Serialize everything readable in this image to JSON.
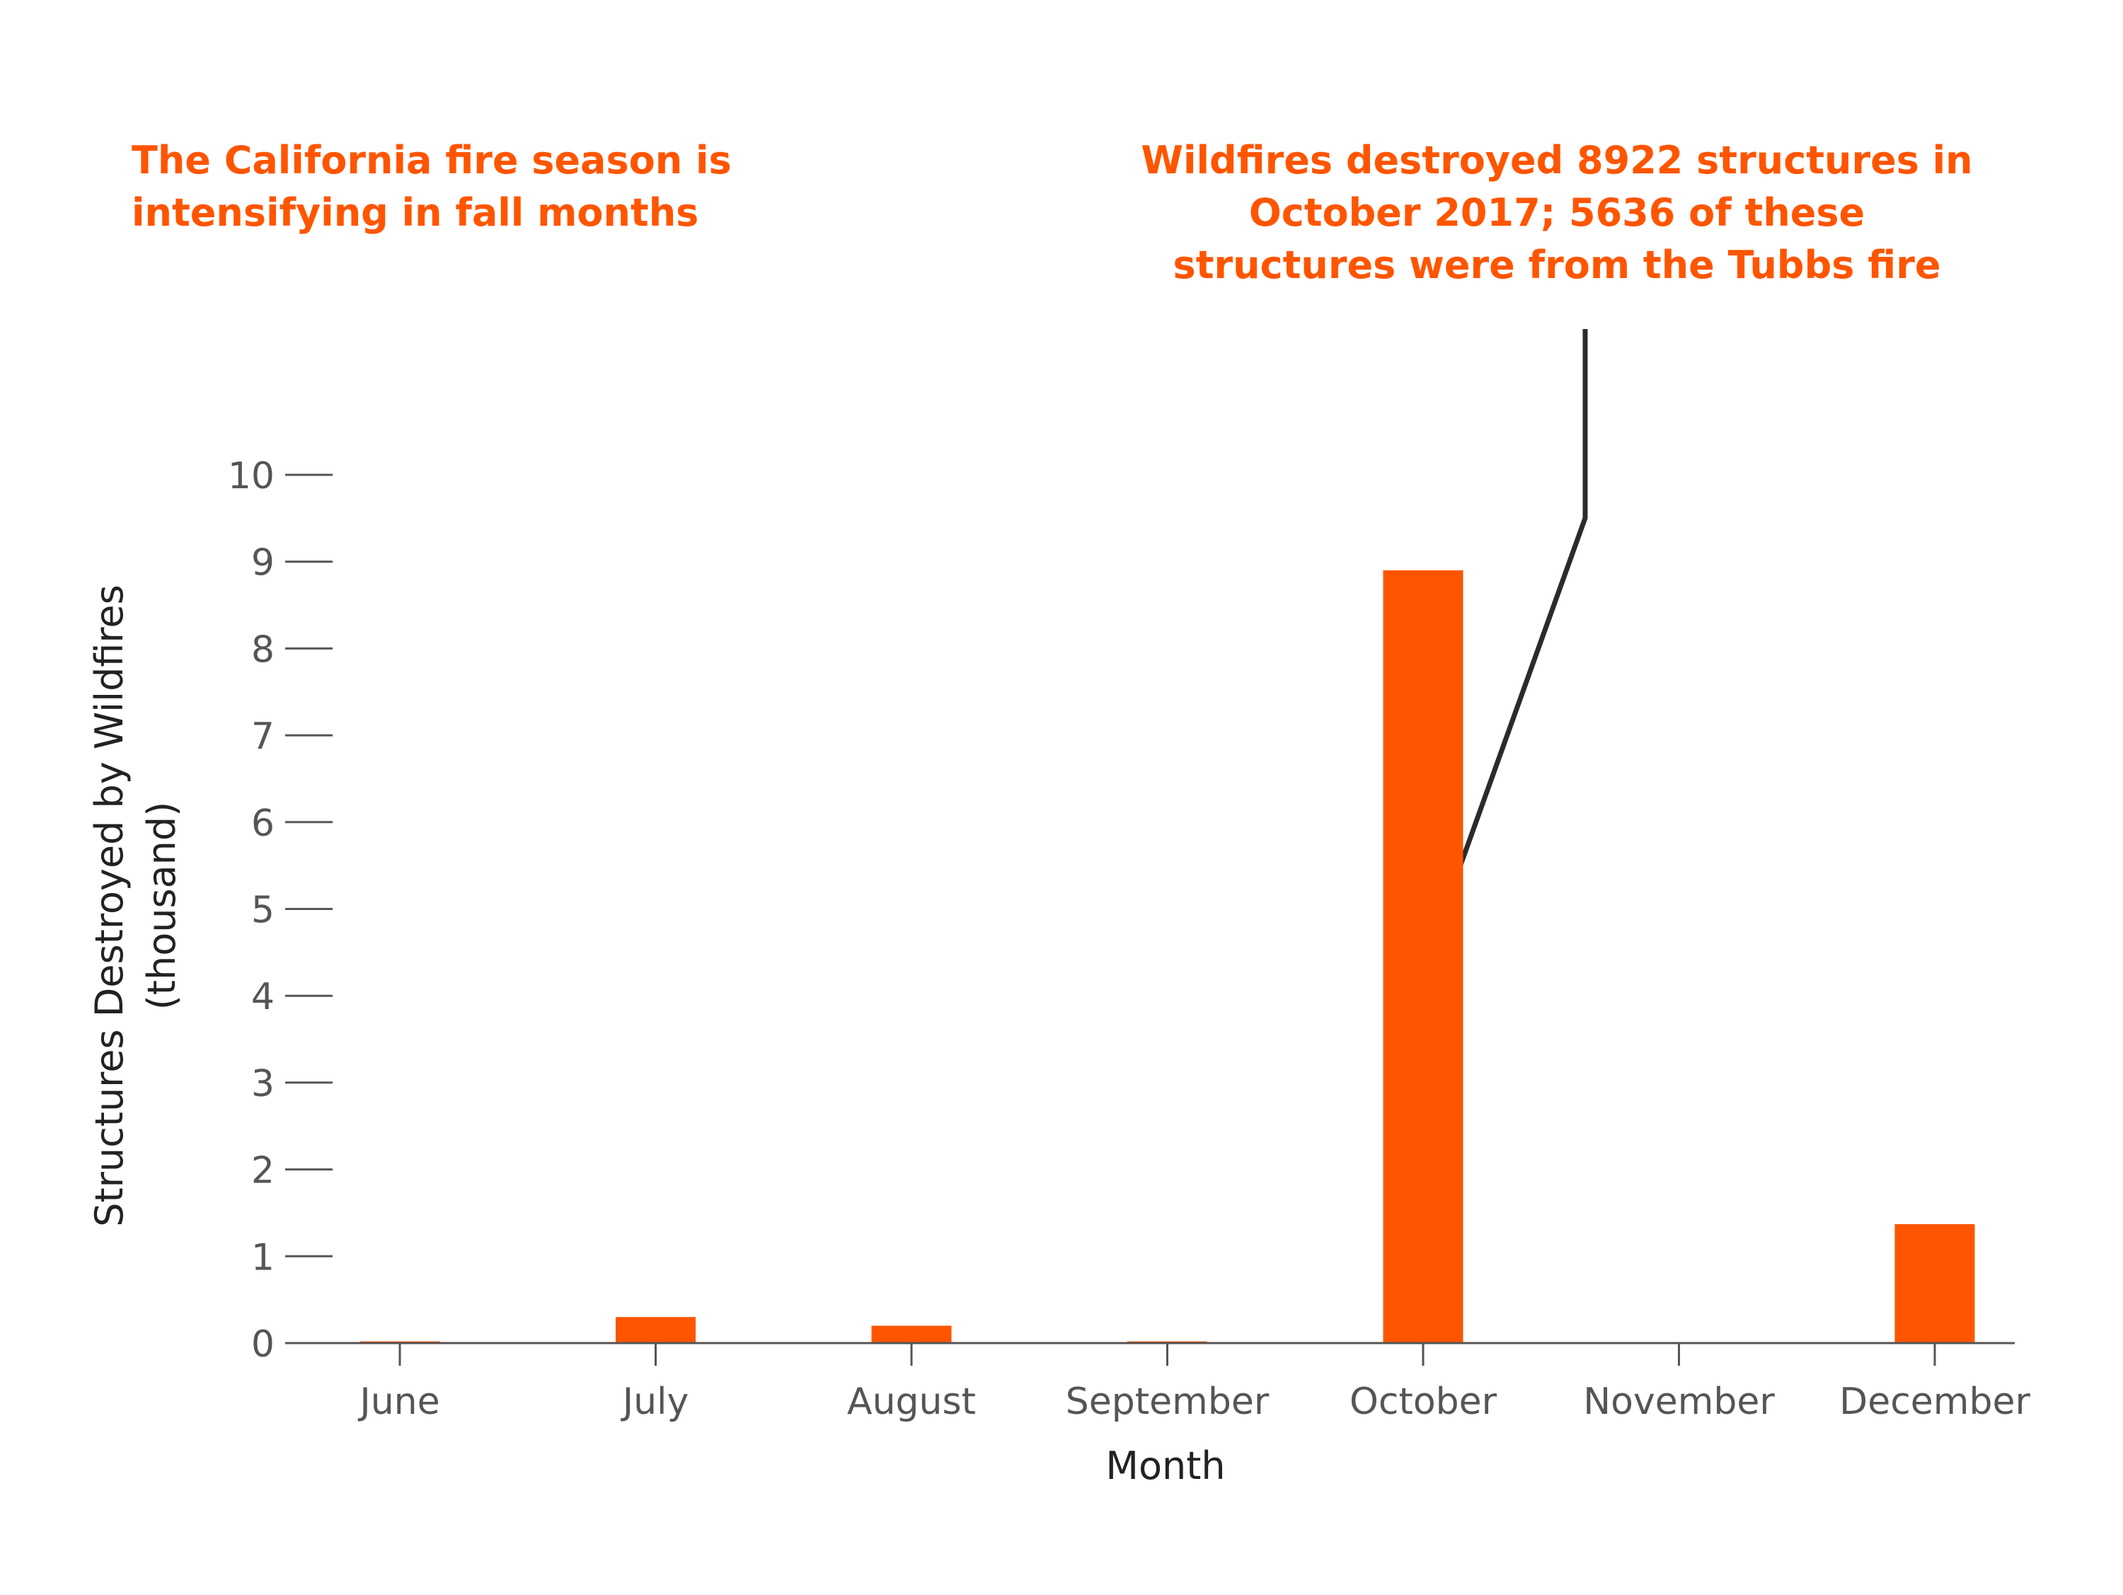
{
  "annotation_left": "The California fire season is intensifying in fall months",
  "annotation_right": "Wildfires destroyed 8922 structures in October 2017; 5636 of these structures were from the Tubbs fire",
  "colors": {
    "accent": "#ff5500",
    "axis": "#555555",
    "callout_line": "#2b2b2b",
    "text": "#222222"
  },
  "chart_data": {
    "type": "bar",
    "categories": [
      "June",
      "July",
      "August",
      "September",
      "October",
      "November",
      "December"
    ],
    "values": [
      0.02,
      0.3,
      0.2,
      0.02,
      8.9,
      0,
      1.37
    ],
    "xlabel": "Month",
    "ylabel": "Structures Destroyed by Wildfires\n(thousand)",
    "ylim": [
      0,
      10
    ],
    "yticks": [
      0,
      1,
      2,
      3,
      4,
      5,
      6,
      7,
      8,
      9,
      10
    ],
    "grid": false,
    "legend": "none",
    "annotation_target": "October"
  }
}
